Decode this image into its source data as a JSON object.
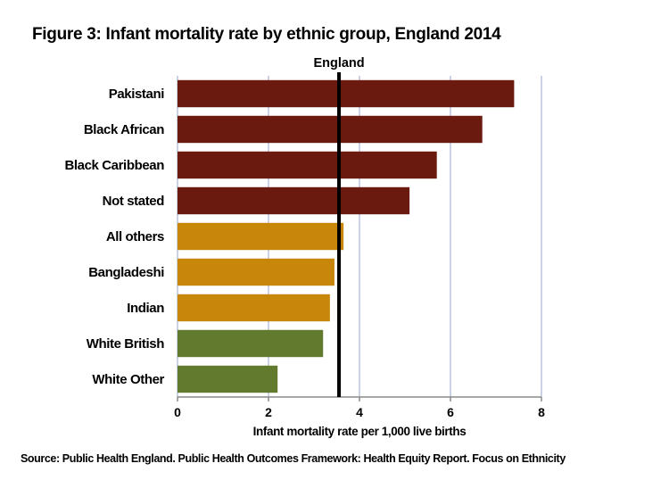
{
  "chart_data": {
    "type": "bar",
    "orientation": "horizontal",
    "title": "Figure 3: Infant mortality rate by ethnic group, England 2014",
    "xlabel": "Infant mortality rate per 1,000 live births",
    "ylabel": "",
    "xlim": [
      0,
      8
    ],
    "xticks": [
      0,
      2,
      4,
      6,
      8
    ],
    "grid": true,
    "categories": [
      "Pakistani",
      "Black African",
      "Black Caribbean",
      "Not stated",
      "All others",
      "Bangladeshi",
      "Indian",
      "White British",
      "White Other"
    ],
    "values": [
      7.4,
      6.7,
      5.7,
      5.1,
      3.65,
      3.45,
      3.35,
      3.2,
      2.2
    ],
    "bar_colors": [
      "#6b1a10",
      "#6b1a10",
      "#6b1a10",
      "#6b1a10",
      "#c8860a",
      "#c8860a",
      "#c8860a",
      "#627a2e",
      "#627a2e"
    ],
    "reference_line": {
      "label": "England",
      "value": 3.55,
      "color": "#000000"
    },
    "source": "Source: Public Health England. Public Health Outcomes Framework: Health Equity Report. Focus on Ethnicity"
  }
}
